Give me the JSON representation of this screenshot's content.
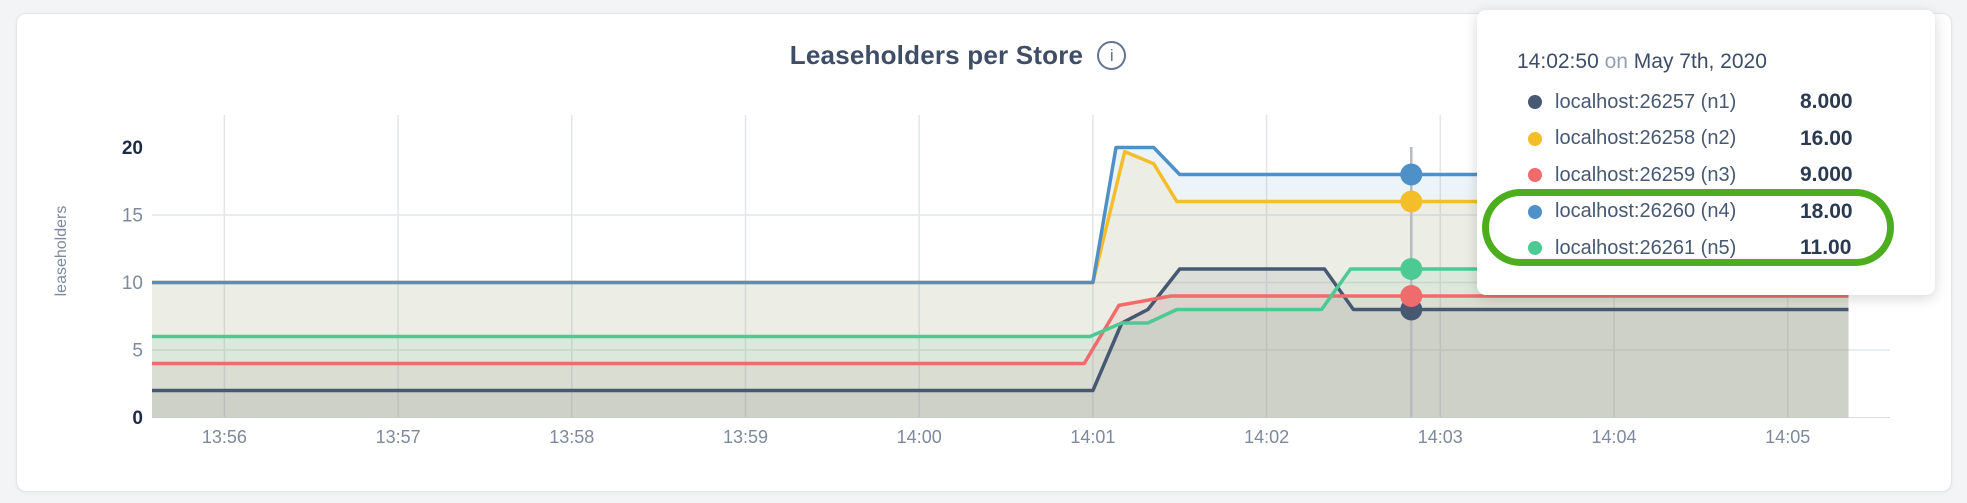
{
  "header": {
    "info_glyph": "i"
  },
  "chart_data": {
    "type": "line",
    "title": "Leaseholders per Store",
    "xlabel": "",
    "ylabel": "leaseholders",
    "ylim": [
      0,
      20
    ],
    "grid": true,
    "legend_position": "tooltip",
    "note": "t = seconds from left edge of plot (~13:55:35); values are leaseholder counts per store",
    "x_ticks": [
      {
        "t": 25,
        "label": "13:56"
      },
      {
        "t": 85,
        "label": "13:57"
      },
      {
        "t": 145,
        "label": "13:58"
      },
      {
        "t": 205,
        "label": "13:59"
      },
      {
        "t": 265,
        "label": "14:00"
      },
      {
        "t": 325,
        "label": "14:01"
      },
      {
        "t": 385,
        "label": "14:02"
      },
      {
        "t": 445,
        "label": "14:03"
      },
      {
        "t": 505,
        "label": "14:04"
      },
      {
        "t": 565,
        "label": "14:05"
      }
    ],
    "y_ticks": [
      {
        "v": 0,
        "label": "0",
        "bold": true
      },
      {
        "v": 5,
        "label": "5",
        "bold": false
      },
      {
        "v": 10,
        "label": "10",
        "bold": false
      },
      {
        "v": 15,
        "label": "15",
        "bold": false
      },
      {
        "v": 20,
        "label": "20",
        "bold": true
      }
    ],
    "series": [
      {
        "id": "n1",
        "name": "localhost:26257 (n1)",
        "color": "#475872",
        "points": [
          [
            0,
            2
          ],
          [
            325,
            2
          ],
          [
            335,
            7
          ],
          [
            344,
            8
          ],
          [
            355,
            11
          ],
          [
            405,
            11
          ],
          [
            415,
            8
          ],
          [
            586,
            8
          ]
        ]
      },
      {
        "id": "n2",
        "name": "localhost:26258 (n2)",
        "color": "#F4BE2B",
        "points": [
          [
            0,
            10
          ],
          [
            325,
            10
          ],
          [
            336,
            19.7
          ],
          [
            346,
            18.8
          ],
          [
            354,
            16
          ],
          [
            586,
            16
          ]
        ]
      },
      {
        "id": "n3",
        "name": "localhost:26259 (n3)",
        "color": "#F06B6B",
        "points": [
          [
            0,
            4
          ],
          [
            322,
            4
          ],
          [
            334,
            8.3
          ],
          [
            352,
            9
          ],
          [
            586,
            9
          ]
        ]
      },
      {
        "id": "n4",
        "name": "localhost:26260 (n4)",
        "color": "#4E91C9",
        "points": [
          [
            0,
            10
          ],
          [
            325,
            10
          ],
          [
            333,
            20
          ],
          [
            346,
            20
          ],
          [
            355,
            18
          ],
          [
            586,
            18
          ]
        ]
      },
      {
        "id": "n5",
        "name": "localhost:26261 (n5)",
        "color": "#4DC993",
        "points": [
          [
            0,
            6
          ],
          [
            324,
            6
          ],
          [
            335,
            7
          ],
          [
            344,
            7
          ],
          [
            354,
            8
          ],
          [
            404,
            8
          ],
          [
            414,
            11
          ],
          [
            586,
            11
          ]
        ]
      }
    ],
    "hover": {
      "t": 435,
      "values": {
        "n1": 8,
        "n2": 16,
        "n3": 9,
        "n4": 18,
        "n5": 11
      }
    }
  },
  "tooltip": {
    "time": "14:02:50",
    "preposition": "on",
    "date": "May 7th, 2020",
    "rows": [
      {
        "name": "localhost:26257 (n1)",
        "value": "8.000",
        "color": "#475872",
        "highlighted": false
      },
      {
        "name": "localhost:26258 (n2)",
        "value": "16.00",
        "color": "#F4BE2B",
        "highlighted": false
      },
      {
        "name": "localhost:26259 (n3)",
        "value": "9.000",
        "color": "#F06B6B",
        "highlighted": false
      },
      {
        "name": "localhost:26260 (n4)",
        "value": "18.00",
        "color": "#4E91C9",
        "highlighted": true
      },
      {
        "name": "localhost:26261 (n5)",
        "value": "11.00",
        "color": "#4DC993",
        "highlighted": true
      }
    ]
  },
  "annotation": {
    "shape": "ellipse-ring",
    "color": "#4CAE1F",
    "wraps": [
      "localhost:26260 (n4)",
      "localhost:26261 (n5)"
    ]
  }
}
